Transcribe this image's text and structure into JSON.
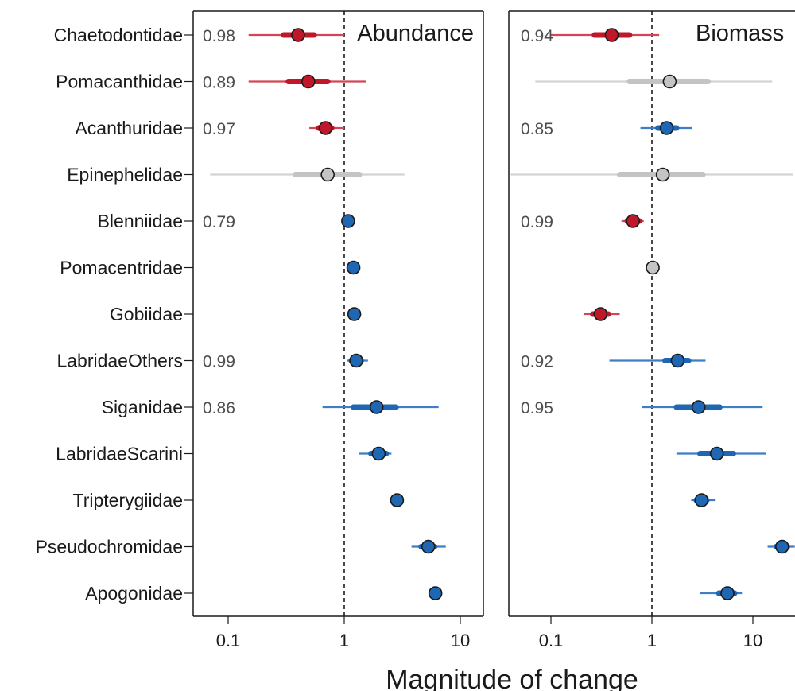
{
  "chart_data": {
    "type": "scatter",
    "xlabel": "Magnitude of change",
    "x_scale": "log",
    "x_ticks": [
      "0.1",
      "1",
      "10"
    ],
    "x_tick_values": [
      0.1,
      1,
      10
    ],
    "xlim": [
      0.05,
      20
    ],
    "reference_line": 1,
    "families": [
      "Chaetodontidae",
      "Pomacanthidae",
      "Acanthuridae",
      "Epinephelidae",
      "Blenniidae",
      "Pomacentridae",
      "Gobiidae",
      "LabridaeOthers",
      "Siganidae",
      "LabridaeScarini",
      "Tripterygiidae",
      "Pseudochromidae",
      "Apogonidae"
    ],
    "colors": {
      "decrease": "#c0182b",
      "increase": "#1f66b3",
      "uncertain": "#c4c4c4"
    },
    "panels": [
      {
        "title": "Abundance",
        "points": [
          {
            "family": "Chaetodontidae",
            "value": 0.4,
            "inner": [
              0.3,
              0.55
            ],
            "outer": [
              0.15,
              1.0
            ],
            "direction": "decrease",
            "prob": "0.98"
          },
          {
            "family": "Pomacanthidae",
            "value": 0.49,
            "inner": [
              0.33,
              0.72
            ],
            "outer": [
              0.15,
              1.55
            ],
            "direction": "decrease",
            "prob": "0.89"
          },
          {
            "family": "Acanthuridae",
            "value": 0.69,
            "inner": [
              0.6,
              0.78
            ],
            "outer": [
              0.5,
              1.0
            ],
            "direction": "decrease",
            "prob": "0.97"
          },
          {
            "family": "Epinephelidae",
            "value": 0.72,
            "inner": [
              0.38,
              1.35
            ],
            "outer": [
              0.07,
              3.3
            ],
            "direction": "uncertain",
            "prob": ""
          },
          {
            "family": "Blenniidae",
            "value": 1.08,
            "inner": [
              1.0,
              1.15
            ],
            "outer": [
              0.97,
              1.2
            ],
            "direction": "increase",
            "prob": "0.79"
          },
          {
            "family": "Pomacentridae",
            "value": 1.2,
            "inner": [
              1.15,
              1.25
            ],
            "outer": [
              1.12,
              1.28
            ],
            "direction": "increase",
            "prob": ""
          },
          {
            "family": "Gobiidae",
            "value": 1.22,
            "inner": [
              1.16,
              1.28
            ],
            "outer": [
              1.12,
              1.32
            ],
            "direction": "increase",
            "prob": ""
          },
          {
            "family": "LabridaeOthers",
            "value": 1.27,
            "inner": [
              1.15,
              1.4
            ],
            "outer": [
              1.05,
              1.6
            ],
            "direction": "increase",
            "prob": "0.99"
          },
          {
            "family": "Siganidae",
            "value": 1.9,
            "inner": [
              1.2,
              2.8
            ],
            "outer": [
              0.65,
              6.5
            ],
            "direction": "increase",
            "prob": "0.86"
          },
          {
            "family": "LabridaeScarini",
            "value": 1.98,
            "inner": [
              1.7,
              2.3
            ],
            "outer": [
              1.35,
              2.55
            ],
            "direction": "increase",
            "prob": ""
          },
          {
            "family": "Tripterygiidae",
            "value": 2.85,
            "inner": [
              2.75,
              2.95
            ],
            "outer": [
              2.7,
              3.0
            ],
            "direction": "increase",
            "prob": ""
          },
          {
            "family": "Pseudochromidae",
            "value": 5.3,
            "inner": [
              4.6,
              6.0
            ],
            "outer": [
              3.8,
              7.5
            ],
            "direction": "increase",
            "prob": ""
          },
          {
            "family": "Apogonidae",
            "value": 6.1,
            "inner": [
              5.9,
              6.3
            ],
            "outer": [
              5.8,
              6.4
            ],
            "direction": "increase",
            "prob": ""
          }
        ]
      },
      {
        "title": "Biomass",
        "points": [
          {
            "family": "Chaetodontidae",
            "value": 0.4,
            "inner": [
              0.27,
              0.6
            ],
            "outer": [
              0.1,
              1.18
            ],
            "direction": "decrease",
            "prob": "0.94"
          },
          {
            "family": "Pomacanthidae",
            "value": 1.5,
            "inner": [
              0.6,
              3.6
            ],
            "outer": [
              0.07,
              15.5
            ],
            "direction": "uncertain",
            "prob": ""
          },
          {
            "family": "Acanthuridae",
            "value": 1.4,
            "inner": [
              1.15,
              1.75
            ],
            "outer": [
              0.77,
              2.5
            ],
            "direction": "increase",
            "prob": "0.85"
          },
          {
            "family": "Epinephelidae",
            "value": 1.28,
            "inner": [
              0.48,
              3.2
            ],
            "outer": [
              0.04,
              25
            ],
            "direction": "uncertain",
            "prob": ""
          },
          {
            "family": "Blenniidae",
            "value": 0.65,
            "inner": [
              0.57,
              0.75
            ],
            "outer": [
              0.5,
              0.83
            ],
            "direction": "decrease",
            "prob": "0.99"
          },
          {
            "family": "Pomacentridae",
            "value": 1.02,
            "inner": [
              0.98,
              1.06
            ],
            "outer": [
              0.96,
              1.08
            ],
            "direction": "uncertain",
            "prob": ""
          },
          {
            "family": "Gobiidae",
            "value": 0.31,
            "inner": [
              0.26,
              0.37
            ],
            "outer": [
              0.21,
              0.48
            ],
            "direction": "decrease",
            "prob": ""
          },
          {
            "family": "LabridaeOthers",
            "value": 1.8,
            "inner": [
              1.35,
              2.3
            ],
            "outer": [
              0.38,
              3.4
            ],
            "direction": "increase",
            "prob": "0.92"
          },
          {
            "family": "Siganidae",
            "value": 2.9,
            "inner": [
              1.75,
              4.7
            ],
            "outer": [
              0.8,
              12.5
            ],
            "direction": "increase",
            "prob": "0.95"
          },
          {
            "family": "LabridaeScarini",
            "value": 4.4,
            "inner": [
              3.0,
              6.4
            ],
            "outer": [
              1.75,
              13.5
            ],
            "direction": "increase",
            "prob": ""
          },
          {
            "family": "Tripterygiidae",
            "value": 3.1,
            "inner": [
              2.75,
              3.5
            ],
            "outer": [
              2.45,
              4.2
            ],
            "direction": "increase",
            "prob": ""
          },
          {
            "family": "Pseudochromidae",
            "value": 19.5,
            "inner": [
              17,
              22
            ],
            "outer": [
              14,
              26
            ],
            "direction": "increase",
            "prob": ""
          },
          {
            "family": "Apogonidae",
            "value": 5.6,
            "inner": [
              4.6,
              6.6
            ],
            "outer": [
              3.0,
              7.8
            ],
            "direction": "increase",
            "prob": ""
          }
        ]
      }
    ]
  }
}
